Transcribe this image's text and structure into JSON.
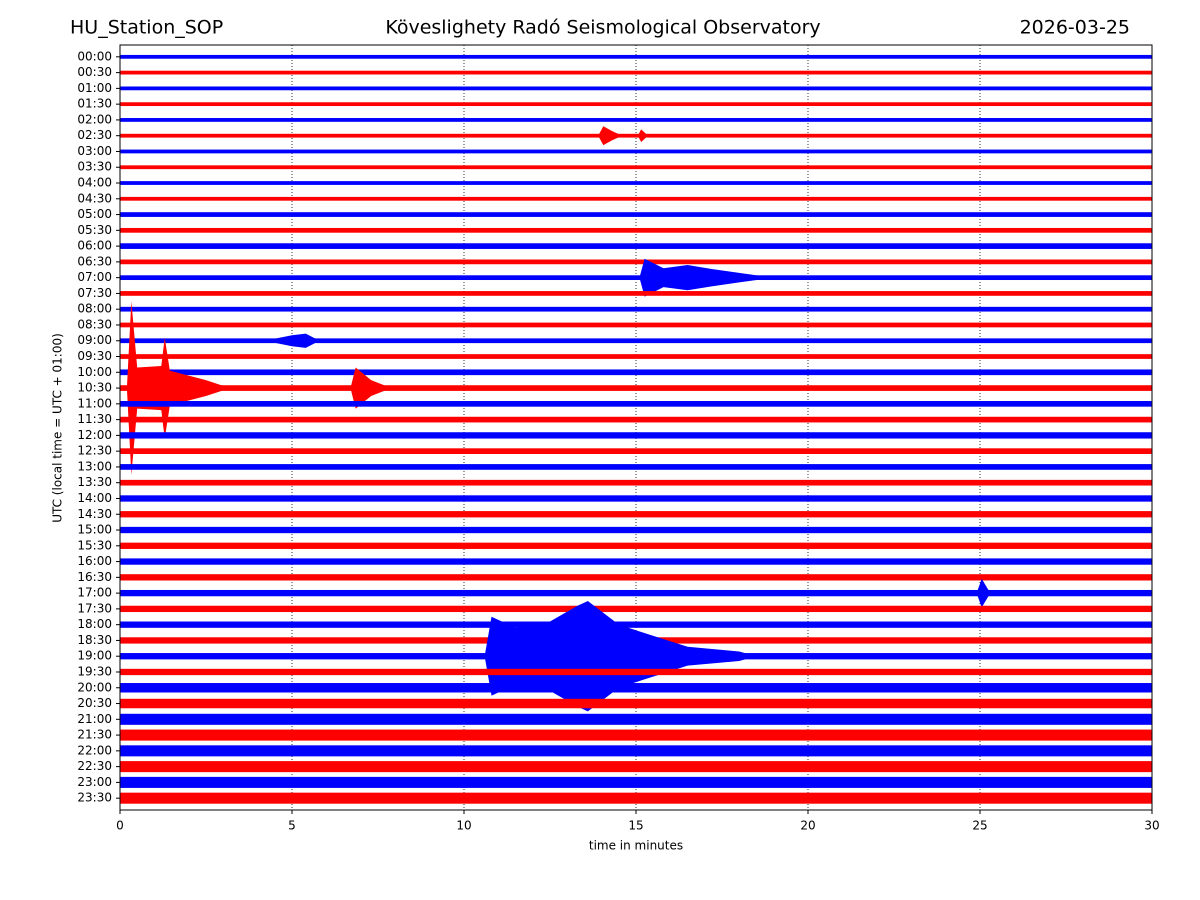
{
  "chart_data": {
    "type": "helicorder",
    "station": "HU_Station_SOP",
    "title": "Köveslighety Radó Seismological Observatory",
    "date": "2026-03-25",
    "xlabel": "time in minutes",
    "ylabel": "UTC (local time = UTC + 01:00)",
    "xlim": [
      0,
      30
    ],
    "xticks": [
      0,
      5,
      10,
      15,
      20,
      25,
      30
    ],
    "grid": true,
    "colors": [
      "#0000ff",
      "#ff0000"
    ],
    "rows": [
      {
        "label": "00:00",
        "noise": 0.12
      },
      {
        "label": "00:30",
        "noise": 0.12
      },
      {
        "label": "01:00",
        "noise": 0.12
      },
      {
        "label": "01:30",
        "noise": 0.12
      },
      {
        "label": "02:00",
        "noise": 0.12
      },
      {
        "label": "02:30",
        "noise": 0.12,
        "events": [
          {
            "x": [
              13.9,
              14.05,
              14.3,
              14.6
            ],
            "amp": [
              0,
              0.6,
              0.3,
              0
            ]
          },
          {
            "x": [
              15.05,
              15.15,
              15.35
            ],
            "amp": [
              0,
              0.4,
              0
            ]
          }
        ]
      },
      {
        "label": "03:00",
        "noise": 0.12
      },
      {
        "label": "03:30",
        "noise": 0.12
      },
      {
        "label": "04:00",
        "noise": 0.12
      },
      {
        "label": "04:30",
        "noise": 0.12
      },
      {
        "label": "05:00",
        "noise": 0.15
      },
      {
        "label": "05:30",
        "noise": 0.15
      },
      {
        "label": "06:00",
        "noise": 0.18
      },
      {
        "label": "06:30",
        "noise": 0.15
      },
      {
        "label": "07:00",
        "noise": 0.15,
        "events": [
          {
            "x": [
              15.1,
              15.25,
              15.8,
              16.5,
              17.2,
              18.0,
              19.0
            ],
            "amp": [
              0,
              1.2,
              0.6,
              0.8,
              0.55,
              0.3,
              0
            ]
          }
        ]
      },
      {
        "label": "07:30",
        "noise": 0.15
      },
      {
        "label": "08:00",
        "noise": 0.15
      },
      {
        "label": "08:30",
        "noise": 0.15
      },
      {
        "label": "09:00",
        "noise": 0.15,
        "events": [
          {
            "x": [
              4.2,
              5.0,
              5.4,
              5.8
            ],
            "amp": [
              0,
              0.35,
              0.45,
              0
            ]
          }
        ]
      },
      {
        "label": "09:30",
        "noise": 0.15
      },
      {
        "label": "10:00",
        "noise": 0.18
      },
      {
        "label": "10:30",
        "noise": 0.18,
        "events": [
          {
            "x": [
              0.2,
              0.33,
              0.5,
              1.2,
              1.3,
              1.45,
              2.5,
              3.2
            ],
            "amp": [
              0,
              5.5,
              1.3,
              1.4,
              3.2,
              1.1,
              0.5,
              0
            ]
          },
          {
            "x": [
              6.7,
              6.85,
              7.3,
              7.9
            ],
            "amp": [
              0,
              1.3,
              0.5,
              0
            ]
          }
        ]
      },
      {
        "label": "11:00",
        "noise": 0.18
      },
      {
        "label": "11:30",
        "noise": 0.18
      },
      {
        "label": "12:00",
        "noise": 0.2
      },
      {
        "label": "12:30",
        "noise": 0.18
      },
      {
        "label": "13:00",
        "noise": 0.18
      },
      {
        "label": "13:30",
        "noise": 0.18
      },
      {
        "label": "14:00",
        "noise": 0.2
      },
      {
        "label": "14:30",
        "noise": 0.2
      },
      {
        "label": "15:00",
        "noise": 0.2
      },
      {
        "label": "15:30",
        "noise": 0.2
      },
      {
        "label": "16:00",
        "noise": 0.2
      },
      {
        "label": "16:30",
        "noise": 0.2
      },
      {
        "label": "17:00",
        "noise": 0.2,
        "events": [
          {
            "x": [
              24.9,
              25.05,
              25.3
            ],
            "amp": [
              0,
              0.9,
              0
            ]
          }
        ]
      },
      {
        "label": "17:30",
        "noise": 0.2
      },
      {
        "label": "18:00",
        "noise": 0.2
      },
      {
        "label": "18:30",
        "noise": 0.2
      },
      {
        "label": "19:00",
        "noise": 0.2,
        "events": [
          {
            "x": [
              10.6,
              10.8,
              11.5,
              12.5,
              13.3,
              13.6,
              14.5,
              15.2,
              16.5,
              18.0,
              18.5
            ],
            "amp": [
              0,
              2.5,
              1.8,
              2.2,
              3.2,
              3.5,
              2.0,
              1.5,
              0.6,
              0.3,
              0
            ]
          }
        ]
      },
      {
        "label": "19:30",
        "noise": 0.2
      },
      {
        "label": "20:00",
        "noise": 0.3
      },
      {
        "label": "20:30",
        "noise": 0.3
      },
      {
        "label": "21:00",
        "noise": 0.35
      },
      {
        "label": "21:30",
        "noise": 0.35
      },
      {
        "label": "22:00",
        "noise": 0.35
      },
      {
        "label": "22:30",
        "noise": 0.35
      },
      {
        "label": "23:00",
        "noise": 0.35
      },
      {
        "label": "23:30",
        "noise": 0.35
      }
    ]
  }
}
